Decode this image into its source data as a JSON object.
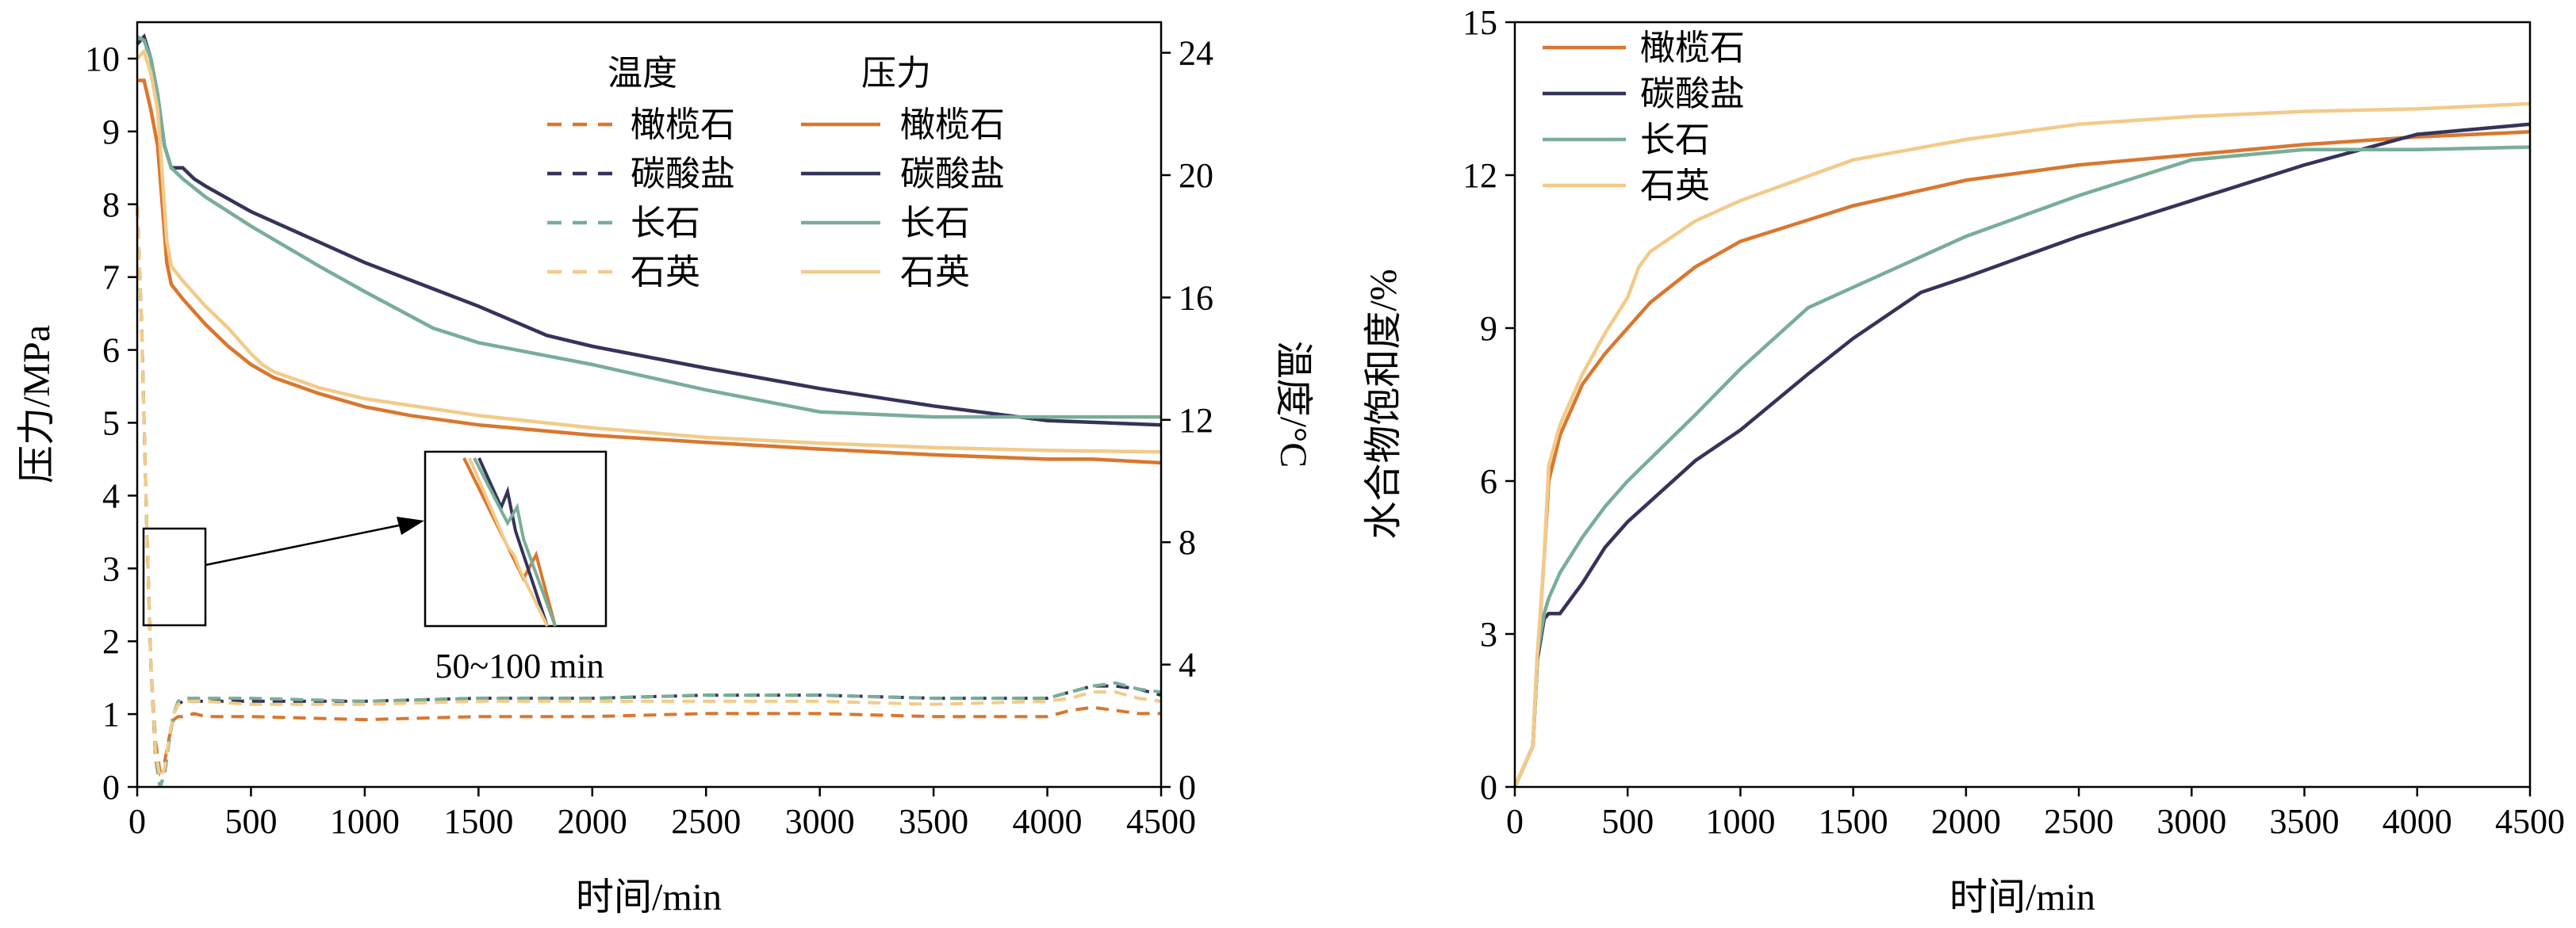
{
  "colors": {
    "olivine": "#d9772f",
    "carbonate": "#34345a",
    "feldspar": "#79ad98",
    "quartz": "#f2cb8a"
  },
  "chart_data": [
    {
      "type": "line",
      "xlabel": "时间/min",
      "ylabel": "压力/MPa",
      "y2label": "温度/°C",
      "xlim": [
        0,
        4500
      ],
      "ylim": [
        0,
        10.5
      ],
      "y2lim": [
        0,
        25
      ],
      "xticks": [
        "0",
        "500",
        "1000",
        "1500",
        "2000",
        "2500",
        "3000",
        "3500",
        "4000",
        "4500"
      ],
      "yticks": [
        "0",
        "1",
        "2",
        "3",
        "4",
        "5",
        "6",
        "7",
        "8",
        "9",
        "10"
      ],
      "y2ticks": [
        "0",
        "4",
        "8",
        "12",
        "16",
        "20",
        "24"
      ],
      "legend": {
        "placement": "top-center",
        "temp_header": "温度",
        "pressure_header": "压力",
        "temp_entries": [
          "橄榄石",
          "碳酸盐",
          "长石",
          "石英"
        ],
        "pressure_entries": [
          "橄榄石",
          "碳酸盐",
          "长石",
          "石英"
        ]
      },
      "inset_label": "50~100 min",
      "pressure_series": [
        {
          "name": "橄榄石",
          "color_key": "olivine",
          "x": [
            0,
            30,
            60,
            90,
            110,
            130,
            150,
            200,
            300,
            400,
            500,
            600,
            800,
            1000,
            1200,
            1500,
            2000,
            2500,
            3000,
            3500,
            4000,
            4200,
            4500
          ],
          "y": [
            9.7,
            9.7,
            9.3,
            8.8,
            8.0,
            7.2,
            6.9,
            6.7,
            6.35,
            6.05,
            5.8,
            5.62,
            5.4,
            5.22,
            5.1,
            4.97,
            4.83,
            4.73,
            4.64,
            4.56,
            4.5,
            4.5,
            4.45
          ]
        },
        {
          "name": "碳酸盐",
          "color_key": "carbonate",
          "x": [
            0,
            30,
            60,
            90,
            120,
            150,
            200,
            250,
            300,
            500,
            1000,
            1500,
            1800,
            2000,
            2500,
            3000,
            3500,
            4000,
            4500
          ],
          "y": [
            10.2,
            10.3,
            10.0,
            9.5,
            8.8,
            8.5,
            8.5,
            8.35,
            8.25,
            7.9,
            7.2,
            6.6,
            6.2,
            6.05,
            5.75,
            5.47,
            5.23,
            5.03,
            4.97
          ]
        },
        {
          "name": "长石",
          "color_key": "feldspar",
          "x": [
            0,
            30,
            60,
            90,
            120,
            150,
            200,
            300,
            500,
            800,
            1000,
            1300,
            1500,
            2000,
            2500,
            3000,
            3500,
            4000,
            4500
          ],
          "y": [
            10.3,
            10.25,
            10.0,
            9.5,
            8.8,
            8.5,
            8.35,
            8.1,
            7.7,
            7.15,
            6.8,
            6.3,
            6.1,
            5.8,
            5.45,
            5.15,
            5.08,
            5.08,
            5.08
          ]
        },
        {
          "name": "石英",
          "color_key": "quartz",
          "x": [
            0,
            30,
            60,
            90,
            110,
            130,
            150,
            200,
            300,
            400,
            500,
            550,
            600,
            800,
            1000,
            1500,
            2000,
            2500,
            3000,
            3500,
            4000,
            4500
          ],
          "y": [
            10.0,
            10.1,
            9.8,
            9.3,
            8.4,
            7.5,
            7.15,
            6.95,
            6.6,
            6.3,
            5.95,
            5.8,
            5.7,
            5.48,
            5.33,
            5.1,
            4.93,
            4.8,
            4.72,
            4.66,
            4.62,
            4.6
          ]
        }
      ],
      "temperature_series": [
        {
          "name": "橄榄石",
          "color_key": "olivine",
          "x": [
            0,
            20,
            40,
            60,
            80,
            100,
            120,
            140,
            160,
            180,
            200,
            250,
            300,
            500,
            1000,
            1500,
            2000,
            2500,
            3000,
            3500,
            4000,
            4100,
            4200,
            4300,
            4400,
            4500
          ],
          "y": [
            19,
            15,
            9,
            4,
            1.5,
            0.5,
            0.8,
            1.6,
            2.2,
            2.3,
            2.3,
            2.4,
            2.3,
            2.3,
            2.2,
            2.3,
            2.3,
            2.4,
            2.4,
            2.3,
            2.3,
            2.5,
            2.6,
            2.5,
            2.4,
            2.4
          ]
        },
        {
          "name": "碳酸盐",
          "color_key": "carbonate",
          "x": [
            0,
            20,
            40,
            60,
            80,
            100,
            120,
            140,
            160,
            180,
            200,
            250,
            300,
            500,
            1000,
            1500,
            2000,
            2500,
            3000,
            3500,
            4000,
            4100,
            4200,
            4300,
            4400,
            4500
          ],
          "y": [
            19,
            15,
            9,
            4,
            1.0,
            0,
            0.4,
            1.5,
            2.4,
            2.7,
            2.8,
            2.8,
            2.8,
            2.8,
            2.8,
            2.9,
            2.9,
            3.0,
            3.0,
            2.9,
            2.9,
            3.1,
            3.3,
            3.3,
            3.2,
            3.0
          ]
        },
        {
          "name": "长石",
          "color_key": "feldspar",
          "x": [
            0,
            20,
            40,
            60,
            80,
            100,
            120,
            140,
            160,
            180,
            200,
            250,
            300,
            500,
            1000,
            1500,
            2000,
            2500,
            3000,
            3500,
            4000,
            4100,
            4200,
            4300,
            4400,
            4500
          ],
          "y": [
            19,
            15,
            9,
            4,
            1.0,
            0,
            0.4,
            1.5,
            2.4,
            2.8,
            2.9,
            2.9,
            2.9,
            2.9,
            2.8,
            2.9,
            2.9,
            3.0,
            3.0,
            2.9,
            2.9,
            3.1,
            3.3,
            3.4,
            3.2,
            3.1
          ]
        },
        {
          "name": "石英",
          "color_key": "quartz",
          "x": [
            0,
            20,
            40,
            60,
            80,
            100,
            120,
            140,
            160,
            180,
            200,
            250,
            300,
            500,
            1000,
            1500,
            2000,
            2500,
            3000,
            3500,
            4000,
            4100,
            4200,
            4300,
            4400,
            4500
          ],
          "y": [
            19,
            15,
            9,
            4,
            1.2,
            0.3,
            0.6,
            1.6,
            2.4,
            2.7,
            2.8,
            2.8,
            2.8,
            2.7,
            2.7,
            2.8,
            2.8,
            2.8,
            2.8,
            2.7,
            2.8,
            2.9,
            3.1,
            3.1,
            2.9,
            2.8
          ]
        }
      ]
    },
    {
      "type": "line",
      "xlabel": "时间/min",
      "ylabel": "水合物饱和度/%",
      "xlim": [
        0,
        4500
      ],
      "ylim": [
        0,
        15
      ],
      "xticks": [
        "0",
        "500",
        "1000",
        "1500",
        "2000",
        "2500",
        "3000",
        "3500",
        "4000",
        "4500"
      ],
      "yticks": [
        "0",
        "3",
        "6",
        "9",
        "12",
        "15"
      ],
      "legend": {
        "placement": "top-left",
        "entries": [
          "橄榄石",
          "碳酸盐",
          "长石",
          "石英"
        ]
      },
      "series": [
        {
          "name": "橄榄石",
          "color_key": "olivine",
          "x": [
            0,
            80,
            100,
            130,
            150,
            200,
            300,
            400,
            500,
            600,
            800,
            1000,
            1500,
            2000,
            2500,
            3000,
            3500,
            4000,
            4500
          ],
          "y": [
            0,
            0.8,
            2.5,
            4.5,
            6.0,
            6.9,
            7.9,
            8.5,
            9.0,
            9.5,
            10.2,
            10.7,
            11.4,
            11.9,
            12.2,
            12.4,
            12.6,
            12.75,
            12.85
          ]
        },
        {
          "name": "碳酸盐",
          "color_key": "carbonate",
          "x": [
            0,
            80,
            100,
            130,
            150,
            200,
            300,
            400,
            500,
            800,
            1000,
            1300,
            1500,
            1800,
            2000,
            2500,
            3000,
            3500,
            4000,
            4500
          ],
          "y": [
            0,
            0.8,
            2.5,
            3.3,
            3.4,
            3.4,
            4.0,
            4.7,
            5.2,
            6.4,
            7.0,
            8.1,
            8.8,
            9.7,
            10.0,
            10.8,
            11.5,
            12.2,
            12.8,
            13.0
          ]
        },
        {
          "name": "长石",
          "color_key": "feldspar",
          "x": [
            0,
            80,
            100,
            130,
            150,
            200,
            300,
            400,
            500,
            800,
            1000,
            1300,
            1500,
            2000,
            2500,
            3000,
            3500,
            4000,
            4500
          ],
          "y": [
            0,
            0.8,
            2.6,
            3.4,
            3.7,
            4.2,
            4.9,
            5.5,
            6.0,
            7.3,
            8.2,
            9.4,
            9.8,
            10.8,
            11.6,
            12.3,
            12.5,
            12.5,
            12.55
          ]
        },
        {
          "name": "石英",
          "color_key": "quartz",
          "x": [
            0,
            80,
            100,
            130,
            150,
            200,
            300,
            400,
            500,
            550,
            600,
            800,
            1000,
            1500,
            2000,
            2500,
            3000,
            3500,
            4000,
            4500
          ],
          "y": [
            0,
            0.8,
            2.6,
            4.5,
            6.3,
            7.1,
            8.1,
            8.9,
            9.6,
            10.2,
            10.5,
            11.1,
            11.5,
            12.3,
            12.7,
            13.0,
            13.15,
            13.25,
            13.3,
            13.4
          ]
        }
      ]
    }
  ]
}
